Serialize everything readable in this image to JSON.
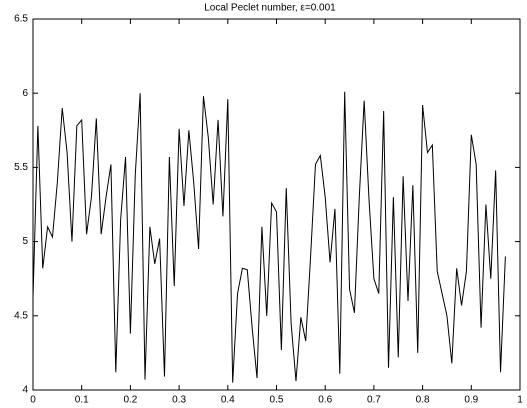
{
  "chart_data": {
    "type": "line",
    "title": "Local Peclet number,  ε=0.001",
    "x": [
      0,
      0.01,
      0.02,
      0.03,
      0.04,
      0.05,
      0.06,
      0.07,
      0.08,
      0.09,
      0.1,
      0.11,
      0.12,
      0.13,
      0.14,
      0.15,
      0.16,
      0.17,
      0.18,
      0.19,
      0.2,
      0.21,
      0.22,
      0.23,
      0.24,
      0.25,
      0.26,
      0.27,
      0.28,
      0.29,
      0.3,
      0.31,
      0.32,
      0.33,
      0.34,
      0.35,
      0.36,
      0.37,
      0.38,
      0.39,
      0.4,
      0.41,
      0.42,
      0.43,
      0.44,
      0.45,
      0.46,
      0.47,
      0.48,
      0.49,
      0.5,
      0.51,
      0.52,
      0.53,
      0.54,
      0.55,
      0.56,
      0.57,
      0.58,
      0.59,
      0.6,
      0.61,
      0.62,
      0.63,
      0.64,
      0.65,
      0.66,
      0.67,
      0.68,
      0.69,
      0.7,
      0.71,
      0.72,
      0.73,
      0.74,
      0.75,
      0.76,
      0.77,
      0.78,
      0.79,
      0.8,
      0.81,
      0.82,
      0.83,
      0.84,
      0.85,
      0.86,
      0.87,
      0.88,
      0.89,
      0.9,
      0.91,
      0.92,
      0.93,
      0.94,
      0.95,
      0.96,
      0.97
    ],
    "series": [
      {
        "color": "#000000",
        "values": [
          4.62,
          5.78,
          4.82,
          5.1,
          5.03,
          5.4,
          5.9,
          5.6,
          5.0,
          5.78,
          5.82,
          5.05,
          5.3,
          5.83,
          5.05,
          5.3,
          5.52,
          4.12,
          5.15,
          5.57,
          4.38,
          5.45,
          6.0,
          4.07,
          5.1,
          4.85,
          5.02,
          4.09,
          5.57,
          4.7,
          5.76,
          5.24,
          5.75,
          5.4,
          4.95,
          5.98,
          5.7,
          5.25,
          5.82,
          5.17,
          5.96,
          4.05,
          4.65,
          4.82,
          4.81,
          4.42,
          4.08,
          5.1,
          4.5,
          5.26,
          5.2,
          4.27,
          5.36,
          4.45,
          4.06,
          4.49,
          4.33,
          4.9,
          5.52,
          5.58,
          5.3,
          4.86,
          5.22,
          4.11,
          6.01,
          4.68,
          4.52,
          5.3,
          5.95,
          5.28,
          4.75,
          4.65,
          5.88,
          4.15,
          5.3,
          4.22,
          5.44,
          4.6,
          5.38,
          4.25,
          5.92,
          5.6,
          5.65,
          4.8,
          4.65,
          4.5,
          4.18,
          4.82,
          4.57,
          4.8,
          5.72,
          5.52,
          4.42,
          5.25,
          4.75,
          5.48,
          4.12,
          4.9
        ]
      }
    ],
    "xlim": [
      0,
      1
    ],
    "xticks": [
      0,
      0.1,
      0.2,
      0.3,
      0.4,
      0.5,
      0.6,
      0.7,
      0.8,
      0.9,
      1
    ],
    "ylim": [
      4,
      6.5
    ],
    "yticks": [
      4,
      4.5,
      5,
      5.5,
      6,
      6.5
    ],
    "grid": false
  }
}
